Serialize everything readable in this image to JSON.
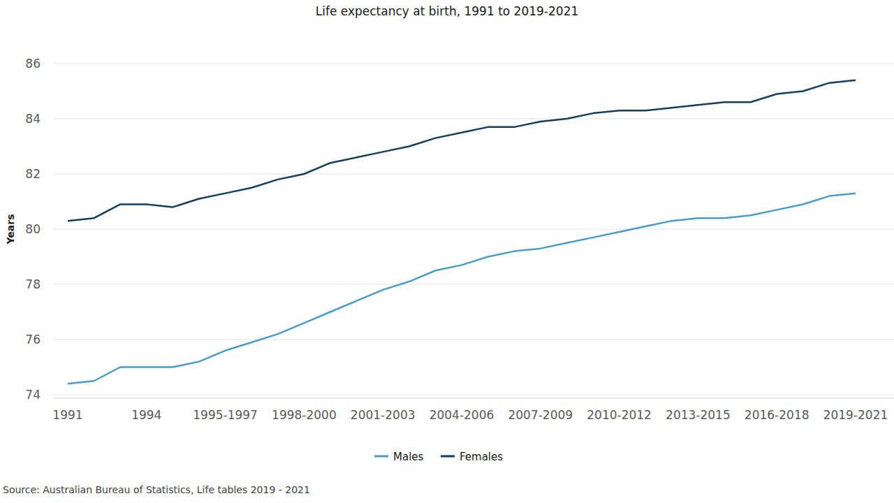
{
  "chart_data": {
    "type": "line",
    "title": "Life expectancy at birth, 1991 to 2019-2021",
    "y_label": "Years",
    "source": "Source: Australian Bureau of Statistics, Life tables 2019 - 2021",
    "categories": [
      "1991",
      null,
      null,
      "1994",
      null,
      null,
      "1995-1997",
      null,
      null,
      "1998-2000",
      null,
      null,
      "2001-2003",
      null,
      null,
      "2004-2006",
      null,
      null,
      "2007-2009",
      null,
      null,
      "2010-2012",
      null,
      null,
      "2013-2015",
      null,
      null,
      "2016-2018",
      null,
      null,
      "2019-2021"
    ],
    "series": [
      {
        "name": "Males",
        "color": "#4a9bc7",
        "values": [
          74.4,
          74.5,
          75.0,
          75.0,
          75.0,
          75.2,
          75.6,
          75.9,
          76.2,
          76.6,
          77.0,
          77.4,
          77.8,
          78.1,
          78.5,
          78.7,
          79.0,
          79.2,
          79.3,
          79.5,
          79.7,
          79.9,
          80.1,
          80.3,
          80.4,
          80.4,
          80.5,
          80.7,
          80.9,
          81.2,
          81.3
        ]
      },
      {
        "name": "Females",
        "color": "#133f5c",
        "values": [
          80.3,
          80.4,
          80.9,
          80.9,
          80.8,
          81.1,
          81.3,
          81.5,
          81.8,
          82.0,
          82.4,
          82.6,
          82.8,
          83.0,
          83.3,
          83.5,
          83.7,
          83.7,
          83.9,
          84.0,
          84.2,
          84.3,
          84.3,
          84.4,
          84.5,
          84.6,
          84.6,
          84.9,
          85.0,
          85.3,
          85.4
        ]
      }
    ],
    "ylim": [
      74,
      86
    ],
    "yticks": [
      74,
      76,
      78,
      80,
      82,
      84,
      86
    ],
    "grid": true,
    "legend": "bottom"
  }
}
